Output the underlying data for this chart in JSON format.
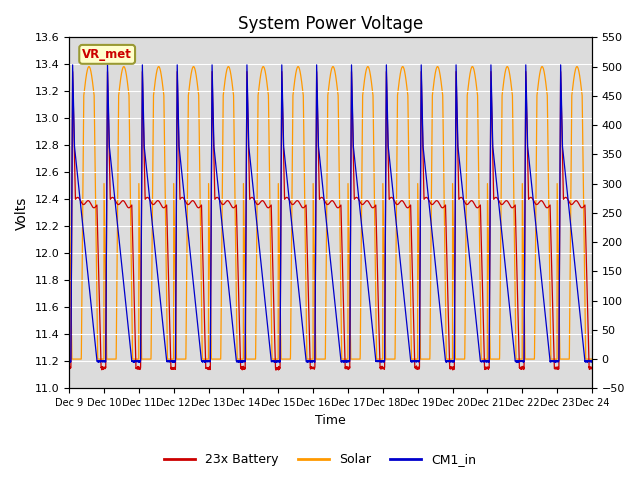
{
  "title": "System Power Voltage",
  "xlabel": "Time",
  "ylabel_left": "Volts",
  "ylabel_right": "",
  "ylim_left": [
    11.0,
    13.6
  ],
  "ylim_right": [
    -50,
    550
  ],
  "xlim": [
    0,
    15
  ],
  "xtick_positions": [
    0,
    1,
    2,
    3,
    4,
    5,
    6,
    7,
    8,
    9,
    10,
    11,
    12,
    13,
    14,
    15
  ],
  "xtick_labels": [
    "Dec 9",
    "Dec 10",
    "Dec 11",
    "Dec 12",
    "Dec 13",
    "Dec 14",
    "Dec 15",
    "Dec 16",
    "Dec 17",
    "Dec 18",
    "Dec 19",
    "Dec 20",
    "Dec 21",
    "Dec 22",
    "Dec 23",
    "Dec 24"
  ],
  "yticks_left": [
    11.0,
    11.2,
    11.4,
    11.6,
    11.8,
    12.0,
    12.2,
    12.4,
    12.6,
    12.8,
    13.0,
    13.2,
    13.4,
    13.6
  ],
  "yticks_right": [
    -50,
    0,
    50,
    100,
    150,
    200,
    250,
    300,
    350,
    400,
    450,
    500,
    550
  ],
  "color_battery": "#cc0000",
  "color_solar": "#ff9900",
  "color_cm1": "#0000cc",
  "vr_met_label": "VR_met",
  "vr_met_color": "#cc0000",
  "vr_met_bg": "#ffffcc",
  "legend_labels": [
    "23x Battery",
    "Solar",
    "CM1_in"
  ],
  "n_days": 15,
  "pts_per_day": 300
}
